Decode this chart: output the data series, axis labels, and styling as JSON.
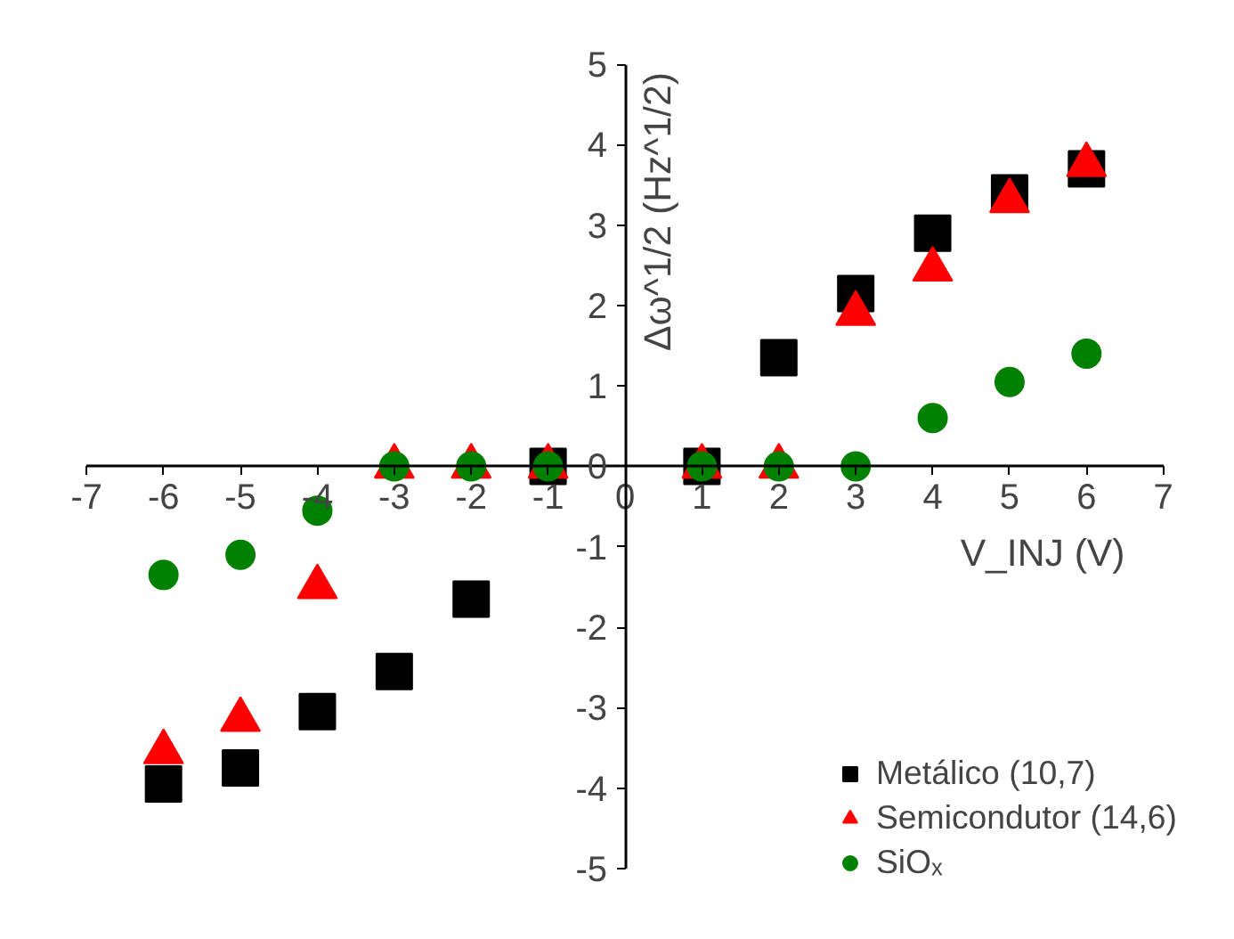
{
  "chart_data": {
    "type": "scatter",
    "xlabel": "V_INJ (V)",
    "ylabel": "Δω^1/2 (Hz^1/2)",
    "x": [
      -6,
      -5,
      -4,
      -3,
      -2,
      -1,
      1,
      2,
      3,
      4,
      5,
      6
    ],
    "series": [
      {
        "name": "Metálico (10,7)",
        "color": "#000000",
        "marker": "square",
        "values": [
          -3.95,
          -3.75,
          -3.05,
          -2.55,
          -1.65,
          0,
          0,
          1.35,
          2.15,
          2.9,
          3.4,
          3.7
        ]
      },
      {
        "name": "Semicondutor (14,6)",
        "color": "#ff0000",
        "marker": "triangle",
        "values": [
          -3.55,
          -3.15,
          -1.5,
          0,
          0,
          0,
          0,
          0,
          1.9,
          2.45,
          3.3,
          3.75
        ]
      },
      {
        "name": "SiOₓ",
        "color": "#008000",
        "marker": "circle",
        "values": [
          -1.35,
          -1.1,
          -0.55,
          0,
          0,
          0,
          0,
          0,
          0,
          0.6,
          1.05,
          1.4
        ]
      }
    ],
    "xlim": [
      -7,
      7
    ],
    "ylim": [
      -5,
      5
    ],
    "xticks": [
      -7,
      -6,
      -5,
      -4,
      -3,
      -2,
      -1,
      0,
      1,
      2,
      3,
      4,
      5,
      6,
      7
    ],
    "yticks": [
      -5,
      -4,
      -3,
      -2,
      -1,
      0,
      1,
      2,
      3,
      4,
      5
    ],
    "grid": false,
    "legend": "bottom right"
  }
}
